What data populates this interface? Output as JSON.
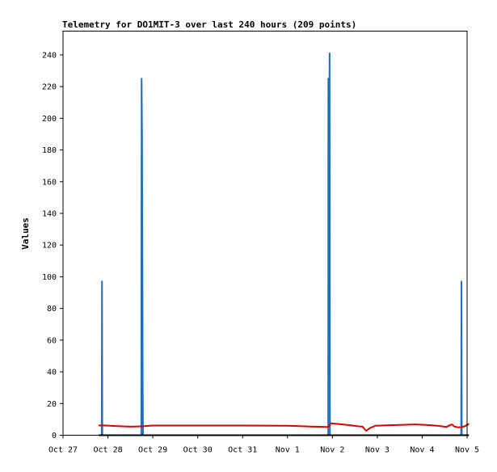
{
  "chart_data": {
    "type": "line",
    "title": "Telemetry for DO1MIT-3 over last 240 hours (209 points)",
    "xlabel": "",
    "ylabel": "Values",
    "xlim": [
      "2024-10-27 00:00",
      "2024-11-05 00:00"
    ],
    "ylim": [
      0,
      255
    ],
    "x_ticks": [
      "Oct 27",
      "Oct 28",
      "Oct 29",
      "Oct 30",
      "Oct 31",
      "Nov 1",
      "Nov 2",
      "Nov 3",
      "Nov 4",
      "Nov 5"
    ],
    "y_ticks": [
      0,
      20,
      40,
      60,
      80,
      100,
      120,
      140,
      160,
      180,
      200,
      220,
      240
    ],
    "grid": false,
    "series": [
      {
        "color": "#1f6fbf",
        "style": "spikes",
        "points": [
          [
            "2024-10-27 20:40",
            0
          ],
          [
            "2024-10-27 20:50",
            97
          ],
          [
            "2024-10-27 21:00",
            0
          ],
          [
            "2024-10-28 17:50",
            0
          ],
          [
            "2024-10-28 18:00",
            225
          ],
          [
            "2024-10-28 18:15",
            187
          ],
          [
            "2024-10-28 18:25",
            112
          ],
          [
            "2024-10-28 18:35",
            38
          ],
          [
            "2024-10-28 18:45",
            0
          ],
          [
            "2024-11-01 21:45",
            0
          ],
          [
            "2024-11-01 21:50",
            225
          ],
          [
            "2024-11-01 22:00",
            40
          ],
          [
            "2024-11-01 22:10",
            121
          ],
          [
            "2024-11-01 22:20",
            200
          ],
          [
            "2024-11-01 22:30",
            241
          ],
          [
            "2024-11-01 22:40",
            0
          ],
          [
            "2024-11-04 20:50",
            0
          ],
          [
            "2024-11-04 21:00",
            97
          ],
          [
            "2024-11-04 21:10",
            0
          ]
        ]
      },
      {
        "color": "#e00000",
        "style": "line",
        "points": [
          [
            "2024-10-27 19:00",
            6.2
          ],
          [
            "2024-10-27 22:00",
            6.2
          ],
          [
            "2024-10-28 04:00",
            5.8
          ],
          [
            "2024-10-28 12:00",
            5.4
          ],
          [
            "2024-10-28 18:00",
            5.6
          ],
          [
            "2024-10-29 00:00",
            6.1
          ],
          [
            "2024-10-30 00:00",
            6.1
          ],
          [
            "2024-10-31 00:00",
            6.1
          ],
          [
            "2024-11-01 00:00",
            6.0
          ],
          [
            "2024-11-01 12:00",
            5.5
          ],
          [
            "2024-11-01 21:00",
            5.2
          ],
          [
            "2024-11-01 22:00",
            5.4
          ],
          [
            "2024-11-01 23:00",
            7.5
          ],
          [
            "2024-11-02 02:00",
            7.2
          ],
          [
            "2024-11-02 08:00",
            6.5
          ],
          [
            "2024-11-02 14:00",
            5.6
          ],
          [
            "2024-11-02 16:00",
            5.5
          ],
          [
            "2024-11-02 18:00",
            2.8
          ],
          [
            "2024-11-02 20:00",
            4.5
          ],
          [
            "2024-11-02 23:00",
            6.0
          ],
          [
            "2024-11-03 06:00",
            6.3
          ],
          [
            "2024-11-03 12:00",
            6.5
          ],
          [
            "2024-11-03 20:00",
            6.8
          ],
          [
            "2024-11-04 02:00",
            6.5
          ],
          [
            "2024-11-04 08:00",
            6.0
          ],
          [
            "2024-11-04 13:00",
            5.2
          ],
          [
            "2024-11-04 15:00",
            6.5
          ],
          [
            "2024-11-04 16:00",
            6.8
          ],
          [
            "2024-11-04 17:00",
            5.6
          ],
          [
            "2024-11-04 19:00",
            5.0
          ],
          [
            "2024-11-04 21:00",
            5.1
          ],
          [
            "2024-11-04 23:00",
            5.8
          ],
          [
            "2024-11-05 01:00",
            7.2
          ]
        ]
      },
      {
        "color": "#000000",
        "style": "line",
        "points": [
          [
            "2024-10-27 19:00",
            0
          ],
          [
            "2024-11-05 01:00",
            0
          ]
        ]
      }
    ]
  }
}
